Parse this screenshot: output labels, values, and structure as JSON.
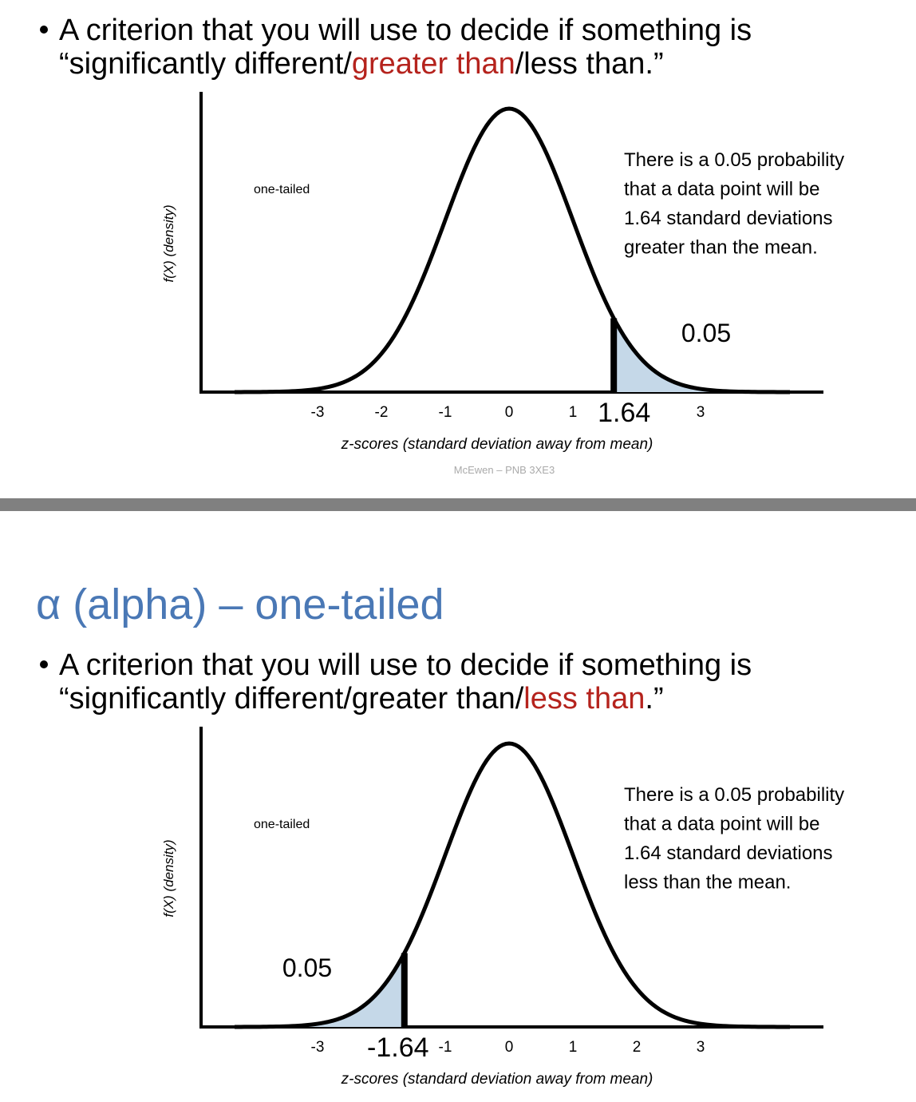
{
  "slides": [
    {
      "bullet": {
        "line1": "A criterion that you will use to decide if something is",
        "line2": [
          "“significantly different/",
          "greater than",
          "/less than.”"
        ]
      },
      "figure": {
        "y_axis_label": "f(X)  (density)",
        "panel_label": "one-tailed",
        "note": [
          "There is a 0.05 probability",
          "that a data point will be",
          "1.64 standard deviations",
          "greater than the mean."
        ],
        "area_label": "0.05",
        "x_ticks": [
          "-3",
          "-2",
          "-1",
          "0",
          "1",
          "1.64",
          "3"
        ],
        "x_axis_label": "z-scores (standard deviation away from mean)",
        "credit": "McEwen – PNB 3XE3"
      }
    },
    {
      "title": "α (alpha) – one-tailed",
      "bullet": {
        "line1": "A criterion that you will use to decide if something is",
        "line2": [
          "“significantly different/greater than/",
          "less than",
          ".”"
        ]
      },
      "figure": {
        "y_axis_label": "f(X)  (density)",
        "panel_label": "one-tailed",
        "note": [
          "There is a 0.05 probability",
          "that a data point will be",
          "1.64 standard deviations",
          "less than the mean."
        ],
        "area_label": "0.05",
        "x_ticks": [
          "-3",
          "-1.64",
          "-1",
          "0",
          "1",
          "2",
          "3"
        ],
        "x_axis_label": "z-scores (standard deviation away from mean)"
      }
    }
  ]
}
